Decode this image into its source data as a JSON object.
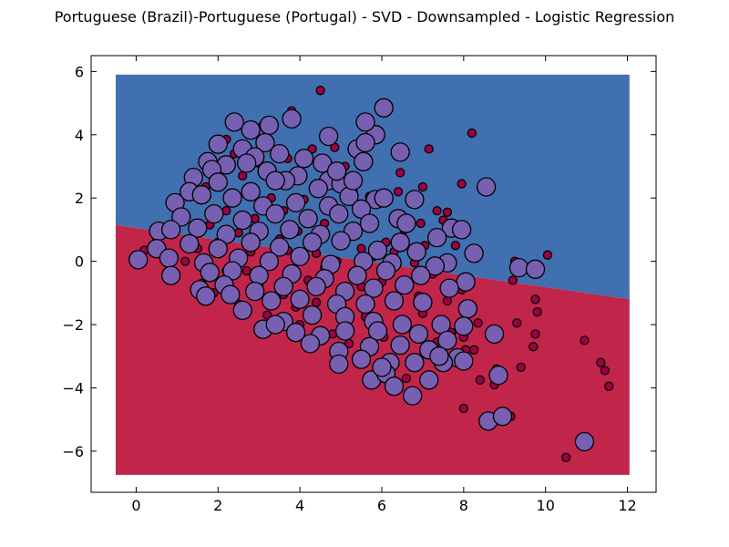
{
  "chart_data": {
    "type": "scatter",
    "title": "Portuguese (Brazil)-Portuguese (Portugal) - SVD - Downsampled - Logistic Regression",
    "xlabel": "",
    "ylabel": "",
    "xlim": [
      -1.1,
      12.7
    ],
    "ylim": [
      -7.3,
      6.5
    ],
    "xticks": [
      0,
      2,
      4,
      6,
      8,
      10,
      12
    ],
    "yticks": [
      -6,
      -4,
      -2,
      0,
      2,
      4,
      6
    ],
    "xtick_labels": [
      "0",
      "2",
      "4",
      "6",
      "8",
      "10",
      "12"
    ],
    "ytick_labels": [
      "−6",
      "−4",
      "−2",
      "0",
      "2",
      "4",
      "6"
    ],
    "grid": false,
    "legend": "none",
    "decision_boundary": {
      "x_range": [
        -0.5,
        12.05
      ],
      "y_range": [
        -6.75,
        5.9
      ],
      "line_points": [
        [
          -0.5,
          1.15
        ],
        [
          12.05,
          -1.2
        ]
      ],
      "upper_region_color": "#4070b0",
      "lower_region_color": "#c1264a"
    },
    "series": [
      {
        "marker": "small-circle",
        "color": "#9e0142",
        "points": [
          [
            4.5,
            5.4
          ],
          [
            3.8,
            4.75
          ],
          [
            3.1,
            4.3
          ],
          [
            2.8,
            4.0
          ],
          [
            2.2,
            3.85
          ],
          [
            5.8,
            4.1
          ],
          [
            4.3,
            3.55
          ],
          [
            4.85,
            3.6
          ],
          [
            3.7,
            3.25
          ],
          [
            6.45,
            2.8
          ],
          [
            7.15,
            3.55
          ],
          [
            8.2,
            4.05
          ],
          [
            5.1,
            3.0
          ],
          [
            2.6,
            2.7
          ],
          [
            1.7,
            2.35
          ],
          [
            6.4,
            2.2
          ],
          [
            7.0,
            2.35
          ],
          [
            7.95,
            2.45
          ],
          [
            3.3,
            2.0
          ],
          [
            4.1,
            1.95
          ],
          [
            5.9,
            1.85
          ],
          [
            2.2,
            1.6
          ],
          [
            7.35,
            1.6
          ],
          [
            7.6,
            1.55
          ],
          [
            2.9,
            1.35
          ],
          [
            4.6,
            1.2
          ],
          [
            6.95,
            1.2
          ],
          [
            7.5,
            1.3
          ],
          [
            1.8,
            1.15
          ],
          [
            3.95,
            0.95
          ],
          [
            5.2,
            0.95
          ],
          [
            6.55,
            1.0
          ],
          [
            2.5,
            0.9
          ],
          [
            0.5,
            0.75
          ],
          [
            3.5,
            0.7
          ],
          [
            6.1,
            0.6
          ],
          [
            7.05,
            0.5
          ],
          [
            0.2,
            0.35
          ],
          [
            1.5,
            0.4
          ],
          [
            2.8,
            0.3
          ],
          [
            4.4,
            0.25
          ],
          [
            5.5,
            0.4
          ],
          [
            6.3,
            0.3
          ],
          [
            7.8,
            0.5
          ],
          [
            10.05,
            0.2
          ],
          [
            1.2,
            0.0
          ],
          [
            3.2,
            -0.1
          ],
          [
            4.9,
            0.0
          ],
          [
            6.8,
            -0.05
          ],
          [
            8.3,
            0.1
          ],
          [
            9.25,
            0.0
          ],
          [
            0.9,
            -0.35
          ],
          [
            2.2,
            -0.3
          ],
          [
            5.3,
            -0.35
          ],
          [
            7.25,
            -0.4
          ],
          [
            9.45,
            -0.15
          ],
          [
            9.2,
            -0.6
          ],
          [
            1.6,
            -0.7
          ],
          [
            3.0,
            -0.75
          ],
          [
            4.2,
            -0.6
          ],
          [
            6.0,
            -0.65
          ],
          [
            8.05,
            -0.6
          ],
          [
            1.9,
            -1.0
          ],
          [
            3.6,
            -1.05
          ],
          [
            5.1,
            -1.0
          ],
          [
            6.9,
            -1.1
          ],
          [
            7.95,
            -0.9
          ],
          [
            7.6,
            -1.25
          ],
          [
            9.75,
            -1.2
          ],
          [
            2.5,
            -1.35
          ],
          [
            4.4,
            -1.3
          ],
          [
            6.3,
            -1.4
          ],
          [
            8.1,
            -1.5
          ],
          [
            9.8,
            -1.6
          ],
          [
            3.2,
            -1.7
          ],
          [
            5.6,
            -1.75
          ],
          [
            7.0,
            -1.65
          ],
          [
            8.35,
            -1.95
          ],
          [
            9.3,
            -1.95
          ],
          [
            4.0,
            -2.0
          ],
          [
            6.6,
            -2.1
          ],
          [
            7.7,
            -2.25
          ],
          [
            9.75,
            -2.3
          ],
          [
            4.8,
            -2.3
          ],
          [
            6.05,
            -2.4
          ],
          [
            7.35,
            -2.55
          ],
          [
            8.0,
            -2.4
          ],
          [
            9.7,
            -2.7
          ],
          [
            5.2,
            -2.6
          ],
          [
            6.5,
            -2.8
          ],
          [
            7.05,
            -2.9
          ],
          [
            8.05,
            -2.8
          ],
          [
            8.25,
            -2.8
          ],
          [
            9.4,
            -3.35
          ],
          [
            5.5,
            -3.1
          ],
          [
            6.7,
            -3.2
          ],
          [
            7.9,
            -3.25
          ],
          [
            8.8,
            -3.4
          ],
          [
            8.4,
            -3.75
          ],
          [
            8.75,
            -3.9
          ],
          [
            5.9,
            -3.6
          ],
          [
            6.6,
            -3.7
          ],
          [
            10.95,
            -2.5
          ],
          [
            11.35,
            -3.2
          ],
          [
            11.45,
            -3.45
          ],
          [
            11.55,
            -3.95
          ],
          [
            9.15,
            -4.9
          ],
          [
            8.0,
            -4.65
          ],
          [
            10.5,
            -6.2
          ],
          [
            2.4,
            3.4
          ],
          [
            3.0,
            3.1
          ],
          [
            4.0,
            2.7
          ],
          [
            4.6,
            2.4
          ],
          [
            5.3,
            2.2
          ],
          [
            5.7,
            2.05
          ],
          [
            3.6,
            1.6
          ],
          [
            4.9,
            1.5
          ],
          [
            5.6,
            1.3
          ],
          [
            2.0,
            0.6
          ],
          [
            3.7,
            0.35
          ],
          [
            4.6,
            -0.2
          ],
          [
            5.8,
            0.15
          ],
          [
            2.7,
            -0.3
          ],
          [
            3.9,
            -1.45
          ],
          [
            5.5,
            -0.8
          ]
        ]
      },
      {
        "marker": "large-circle",
        "color": "#7760b2",
        "points": [
          [
            6.05,
            4.85
          ],
          [
            2.4,
            4.4
          ],
          [
            3.25,
            4.3
          ],
          [
            3.8,
            4.5
          ],
          [
            2.8,
            4.15
          ],
          [
            4.7,
            3.95
          ],
          [
            5.85,
            4.0
          ],
          [
            5.6,
            4.4
          ],
          [
            2.0,
            3.7
          ],
          [
            2.6,
            3.55
          ],
          [
            3.15,
            3.75
          ],
          [
            5.4,
            3.55
          ],
          [
            5.6,
            3.75
          ],
          [
            6.45,
            3.45
          ],
          [
            1.75,
            3.15
          ],
          [
            2.2,
            3.05
          ],
          [
            2.9,
            3.3
          ],
          [
            3.5,
            3.4
          ],
          [
            4.1,
            3.25
          ],
          [
            4.55,
            3.1
          ],
          [
            5.55,
            3.15
          ],
          [
            1.4,
            2.65
          ],
          [
            1.85,
            2.9
          ],
          [
            3.2,
            2.85
          ],
          [
            3.95,
            2.7
          ],
          [
            4.7,
            2.55
          ],
          [
            5.0,
            2.45
          ],
          [
            1.3,
            2.2
          ],
          [
            2.0,
            2.5
          ],
          [
            2.8,
            2.2
          ],
          [
            3.65,
            2.55
          ],
          [
            4.45,
            2.3
          ],
          [
            5.2,
            2.05
          ],
          [
            5.85,
            1.95
          ],
          [
            6.05,
            2.0
          ],
          [
            6.8,
            1.95
          ],
          [
            8.55,
            2.35
          ],
          [
            0.95,
            1.85
          ],
          [
            1.6,
            2.1
          ],
          [
            2.35,
            2.0
          ],
          [
            3.1,
            1.75
          ],
          [
            3.9,
            1.85
          ],
          [
            4.7,
            1.75
          ],
          [
            5.5,
            1.65
          ],
          [
            6.4,
            1.35
          ],
          [
            7.7,
            1.05
          ],
          [
            1.1,
            1.4
          ],
          [
            1.9,
            1.5
          ],
          [
            2.6,
            1.3
          ],
          [
            3.4,
            1.5
          ],
          [
            4.2,
            1.35
          ],
          [
            4.95,
            1.5
          ],
          [
            5.7,
            1.2
          ],
          [
            0.55,
            0.95
          ],
          [
            0.85,
            1.0
          ],
          [
            1.5,
            1.05
          ],
          [
            2.2,
            0.85
          ],
          [
            3.0,
            0.95
          ],
          [
            3.75,
            1.0
          ],
          [
            4.5,
            0.85
          ],
          [
            5.3,
            0.95
          ],
          [
            6.45,
            0.6
          ],
          [
            7.35,
            0.75
          ],
          [
            8.25,
            0.25
          ],
          [
            0.5,
            0.4
          ],
          [
            1.3,
            0.55
          ],
          [
            2.0,
            0.4
          ],
          [
            2.8,
            0.6
          ],
          [
            3.5,
            0.45
          ],
          [
            4.3,
            0.6
          ],
          [
            5.0,
            0.65
          ],
          [
            5.9,
            0.35
          ],
          [
            6.85,
            0.3
          ],
          [
            7.6,
            -0.05
          ],
          [
            0.05,
            0.05
          ],
          [
            0.8,
            0.1
          ],
          [
            1.65,
            -0.05
          ],
          [
            2.5,
            0.1
          ],
          [
            3.25,
            0.0
          ],
          [
            4.0,
            0.15
          ],
          [
            4.75,
            -0.1
          ],
          [
            5.55,
            0.0
          ],
          [
            6.25,
            -0.05
          ],
          [
            7.3,
            -0.15
          ],
          [
            0.85,
            -0.45
          ],
          [
            1.8,
            -0.35
          ],
          [
            2.35,
            -0.3
          ],
          [
            3.0,
            -0.45
          ],
          [
            3.8,
            -0.4
          ],
          [
            4.6,
            -0.55
          ],
          [
            5.4,
            -0.45
          ],
          [
            6.1,
            -0.3
          ],
          [
            6.95,
            -0.45
          ],
          [
            8.05,
            -0.65
          ],
          [
            9.35,
            -0.2
          ],
          [
            9.75,
            -0.25
          ],
          [
            1.55,
            -0.9
          ],
          [
            2.15,
            -0.75
          ],
          [
            2.9,
            -0.95
          ],
          [
            3.6,
            -0.8
          ],
          [
            4.4,
            -0.8
          ],
          [
            5.1,
            -0.95
          ],
          [
            5.8,
            -0.85
          ],
          [
            6.55,
            -0.75
          ],
          [
            7.65,
            -0.85
          ],
          [
            1.7,
            -1.1
          ],
          [
            2.6,
            -1.55
          ],
          [
            3.3,
            -1.25
          ],
          [
            4.0,
            -1.2
          ],
          [
            4.9,
            -1.35
          ],
          [
            5.6,
            -1.35
          ],
          [
            6.3,
            -1.25
          ],
          [
            7.0,
            -1.3
          ],
          [
            8.1,
            -1.5
          ],
          [
            3.1,
            -2.15
          ],
          [
            3.6,
            -1.9
          ],
          [
            4.3,
            -1.7
          ],
          [
            5.1,
            -1.75
          ],
          [
            5.8,
            -1.9
          ],
          [
            6.5,
            -2.0
          ],
          [
            7.45,
            -2.0
          ],
          [
            8.0,
            -2.05
          ],
          [
            3.9,
            -2.25
          ],
          [
            4.5,
            -2.35
          ],
          [
            5.1,
            -2.2
          ],
          [
            5.9,
            -2.2
          ],
          [
            6.9,
            -2.3
          ],
          [
            7.6,
            -2.5
          ],
          [
            8.75,
            -2.3
          ],
          [
            4.25,
            -2.6
          ],
          [
            4.95,
            -2.85
          ],
          [
            5.7,
            -2.7
          ],
          [
            6.45,
            -2.65
          ],
          [
            7.15,
            -2.8
          ],
          [
            7.85,
            -3.05
          ],
          [
            4.95,
            -3.25
          ],
          [
            5.5,
            -3.1
          ],
          [
            6.2,
            -3.2
          ],
          [
            6.8,
            -3.2
          ],
          [
            7.5,
            -3.2
          ],
          [
            8.0,
            -3.15
          ],
          [
            5.75,
            -3.75
          ],
          [
            6.1,
            -3.55
          ],
          [
            6.3,
            -3.95
          ],
          [
            7.15,
            -3.75
          ],
          [
            6.75,
            -4.25
          ],
          [
            8.85,
            -3.6
          ],
          [
            8.6,
            -5.05
          ],
          [
            8.95,
            -4.9
          ],
          [
            10.95,
            -5.7
          ],
          [
            2.7,
            3.1
          ],
          [
            3.4,
            2.55
          ],
          [
            4.9,
            2.85
          ],
          [
            5.3,
            2.55
          ],
          [
            6.6,
            1.2
          ],
          [
            7.95,
            1.0
          ],
          [
            2.3,
            -1.05
          ],
          [
            3.4,
            -2.0
          ],
          [
            6.0,
            -3.35
          ],
          [
            7.4,
            -3.0
          ]
        ]
      }
    ]
  }
}
